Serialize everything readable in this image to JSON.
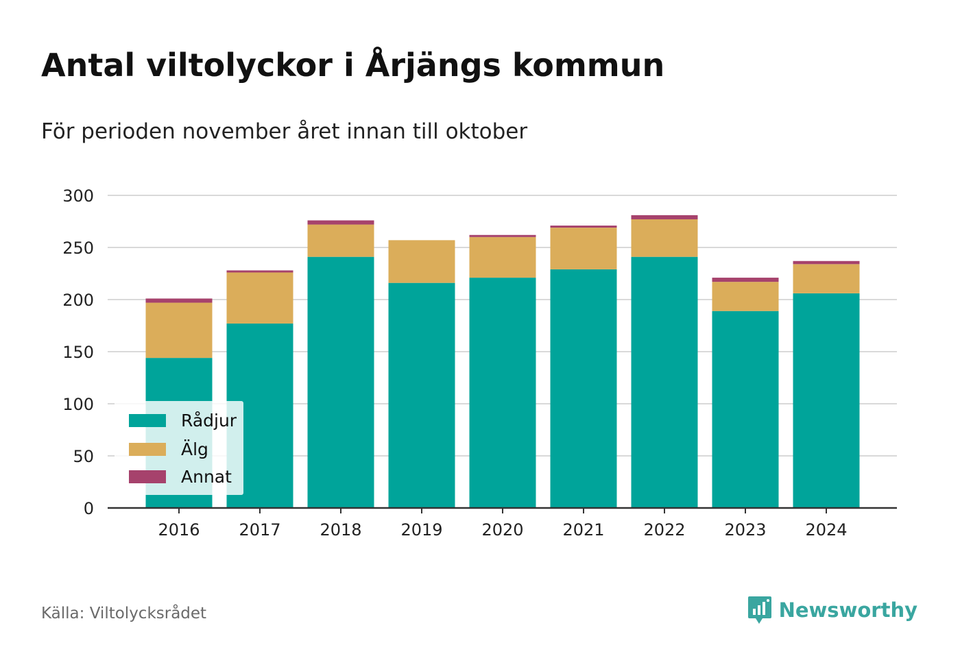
{
  "title": "Antal viltolyckor i Årjängs kommun",
  "subtitle": "För perioden november året innan till oktober",
  "source": "Källa: Viltolycksrådet",
  "brand": {
    "name": "Newsworthy",
    "icon": "newsworthy-logo-icon",
    "color": "#3aa6a0"
  },
  "chart_data": {
    "type": "bar",
    "stacked": true,
    "categories": [
      "2016",
      "2017",
      "2018",
      "2019",
      "2020",
      "2021",
      "2022",
      "2023",
      "2024"
    ],
    "series": [
      {
        "name": "Rådjur",
        "color": "#00a49a",
        "values": [
          144,
          177,
          241,
          216,
          221,
          229,
          241,
          189,
          206
        ]
      },
      {
        "name": "Älg",
        "color": "#dbad5a",
        "values": [
          53,
          49,
          31,
          41,
          39,
          40,
          36,
          28,
          28
        ]
      },
      {
        "name": "Annat",
        "color": "#a6426c",
        "values": [
          4,
          2,
          4,
          0,
          2,
          2,
          4,
          4,
          3
        ]
      }
    ],
    "ylim": [
      0,
      300
    ],
    "yticks": [
      0,
      50,
      100,
      150,
      200,
      250,
      300
    ],
    "grid": true,
    "legend_position": "bottom-left"
  }
}
